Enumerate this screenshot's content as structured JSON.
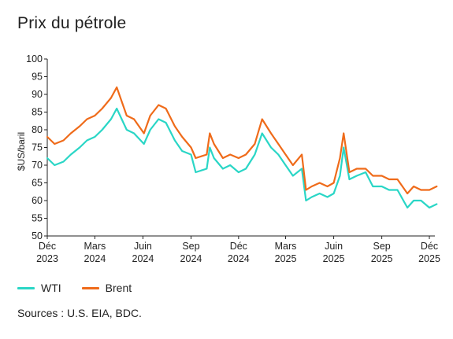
{
  "title": "Prix du pétrole",
  "sources": "Sources : U.S. EIA, BDC.",
  "colors": {
    "WTI": "#2ad6c6",
    "Brent": "#ef6b1a",
    "axis": "#222222"
  },
  "chart_data": {
    "type": "line",
    "title": "Prix du pétrole",
    "ylabel": "$US/baril",
    "xlabel": "",
    "ylim": [
      50,
      100
    ],
    "yticks": [
      50,
      55,
      60,
      65,
      70,
      75,
      80,
      85,
      90,
      95,
      100
    ],
    "grid": false,
    "legend_position": "bottom-left",
    "xticks": [
      {
        "month": "Déc",
        "year": "2023",
        "date": "2023-12-01"
      },
      {
        "month": "Mars",
        "year": "2024",
        "date": "2024-03-01"
      },
      {
        "month": "Juin",
        "year": "2024",
        "date": "2024-06-01"
      },
      {
        "month": "Sep",
        "year": "2024",
        "date": "2024-09-01"
      },
      {
        "month": "Déc",
        "year": "2024",
        "date": "2024-12-01"
      },
      {
        "month": "Mars",
        "year": "2025",
        "date": "2025-03-01"
      },
      {
        "month": "Juin",
        "year": "2025",
        "date": "2025-06-01"
      },
      {
        "month": "Sep",
        "year": "2025",
        "date": "2025-09-01"
      },
      {
        "month": "Déc",
        "year": "2025",
        "date": "2025-12-01"
      }
    ],
    "x": [
      "2023-12-01",
      "2023-12-15",
      "2024-01-01",
      "2024-01-15",
      "2024-02-01",
      "2024-02-15",
      "2024-03-01",
      "2024-03-15",
      "2024-04-01",
      "2024-04-12",
      "2024-05-01",
      "2024-05-15",
      "2024-06-03",
      "2024-06-15",
      "2024-07-01",
      "2024-07-15",
      "2024-08-01",
      "2024-08-15",
      "2024-09-01",
      "2024-09-10",
      "2024-10-01",
      "2024-10-07",
      "2024-10-15",
      "2024-11-01",
      "2024-11-15",
      "2024-12-01",
      "2024-12-15",
      "2025-01-01",
      "2025-01-15",
      "2025-02-01",
      "2025-02-15",
      "2025-03-01",
      "2025-03-15",
      "2025-04-01",
      "2025-04-09",
      "2025-04-20",
      "2025-05-05",
      "2025-05-20",
      "2025-06-01",
      "2025-06-13",
      "2025-06-20",
      "2025-07-01",
      "2025-07-15",
      "2025-08-01",
      "2025-08-15",
      "2025-09-01",
      "2025-09-15",
      "2025-10-01",
      "2025-10-20",
      "2025-11-01",
      "2025-11-15",
      "2025-12-01",
      "2025-12-15"
    ],
    "series": [
      {
        "name": "WTI",
        "values": [
          72,
          70,
          71,
          73,
          75,
          77,
          78,
          80,
          83,
          86,
          80,
          79,
          76,
          80,
          83,
          82,
          77,
          74,
          73,
          68,
          69,
          75,
          72,
          69,
          70,
          68,
          69,
          73,
          79,
          75,
          73,
          70,
          67,
          69,
          60,
          61,
          62,
          61,
          62,
          67,
          75,
          66,
          67,
          68,
          64,
          64,
          63,
          63,
          58,
          60,
          60,
          58,
          59
        ]
      },
      {
        "name": "Brent",
        "values": [
          78,
          76,
          77,
          79,
          81,
          83,
          84,
          86,
          89,
          92,
          84,
          83,
          79,
          84,
          87,
          86,
          81,
          78,
          75,
          72,
          73,
          79,
          76,
          72,
          73,
          72,
          73,
          76,
          83,
          79,
          76,
          73,
          70,
          73,
          63,
          64,
          65,
          64,
          65,
          72,
          79,
          68,
          69,
          69,
          67,
          67,
          66,
          66,
          62,
          64,
          63,
          63,
          64
        ]
      }
    ]
  }
}
